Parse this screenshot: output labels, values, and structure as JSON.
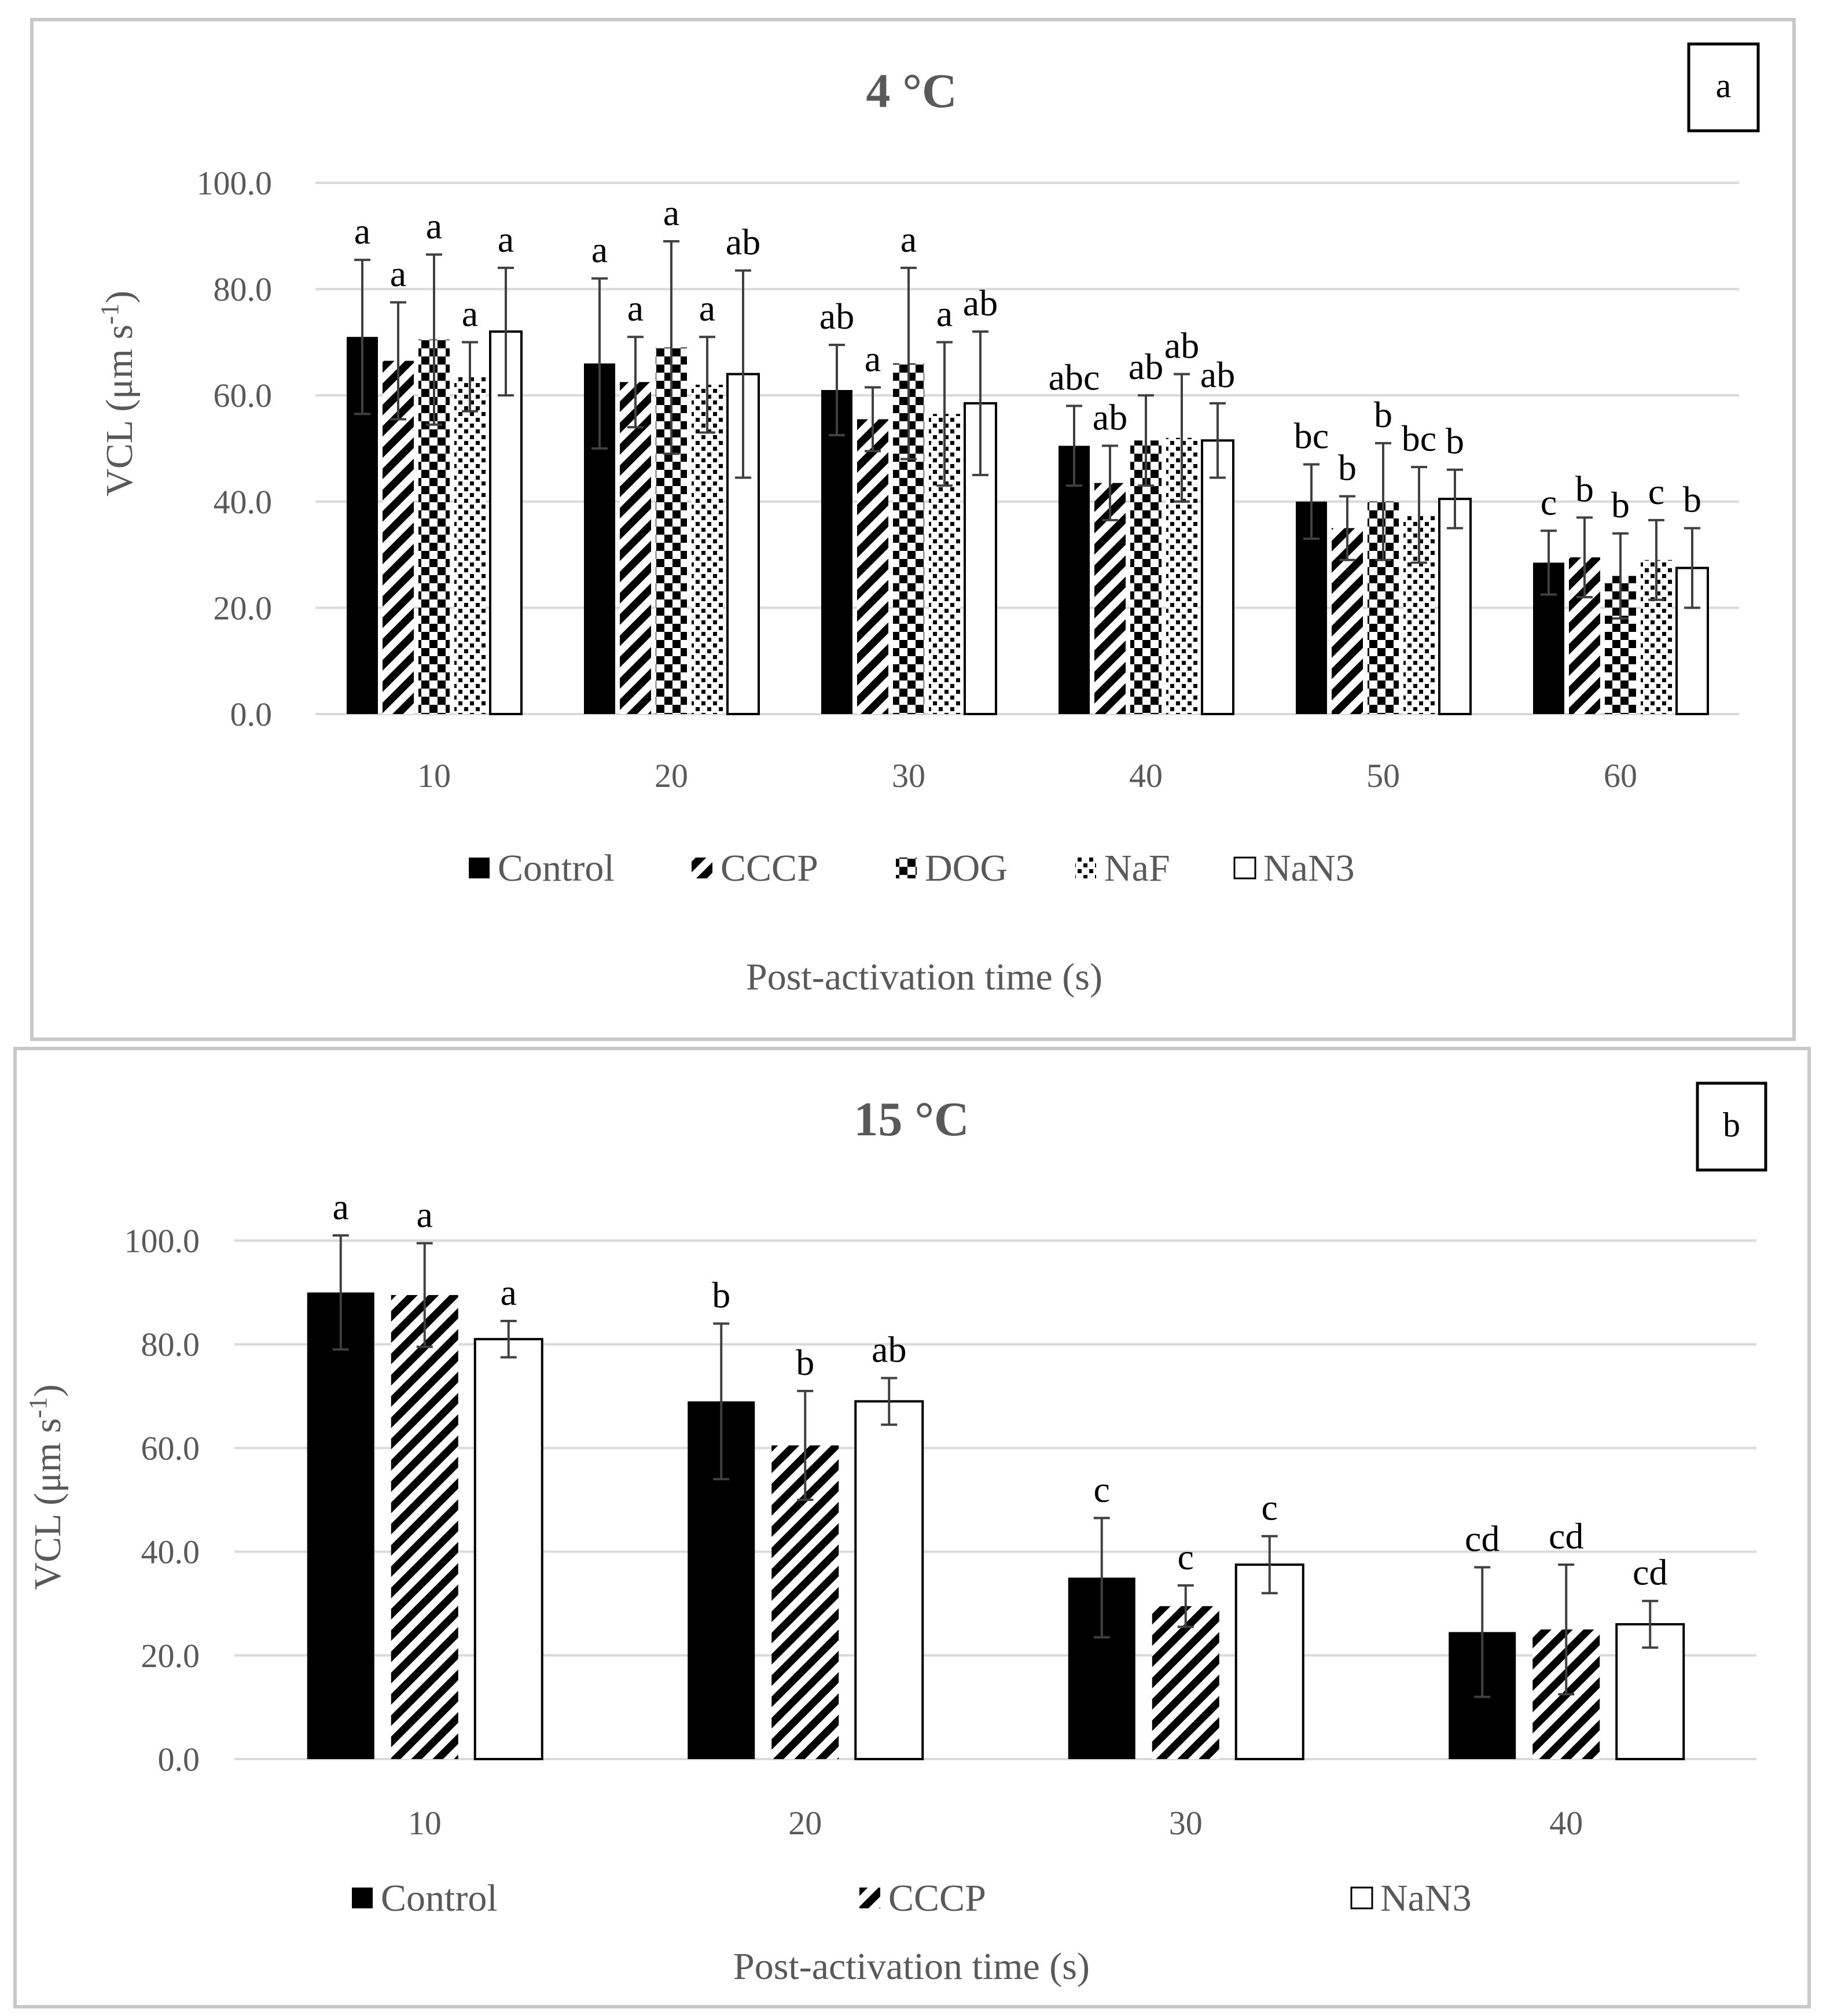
{
  "chart_data": [
    {
      "type": "bar",
      "panel_label": "a",
      "title": "4 °C",
      "xlabel": "Post-activation time (s)",
      "ylabel_main": "VCL (μm s",
      "ylabel_sup": "-1",
      "ylabel_close": ")",
      "ylim": [
        0,
        100
      ],
      "yticks": [
        "0.0",
        "20.0",
        "40.0",
        "60.0",
        "80.0",
        "100.0"
      ],
      "grid": true,
      "legend_position": "bottom",
      "categories": [
        "10",
        "20",
        "30",
        "40",
        "50",
        "60"
      ],
      "series": [
        {
          "name": "Control",
          "pattern": "solid",
          "values": [
            71,
            66,
            61,
            50.5,
            40,
            28.5
          ],
          "errors": [
            14.5,
            16,
            8.5,
            7.5,
            7,
            6
          ],
          "letters": [
            "a",
            "a",
            "ab",
            "abc",
            "bc",
            "c"
          ]
        },
        {
          "name": "CCCP",
          "pattern": "diagonal",
          "values": [
            66.5,
            62.5,
            55.5,
            43.5,
            35,
            29.5
          ],
          "errors": [
            11,
            8.5,
            6,
            7,
            6,
            7.5
          ],
          "letters": [
            "a",
            "a",
            "a",
            "ab",
            "b",
            "b"
          ]
        },
        {
          "name": "DOG",
          "pattern": "checker",
          "values": [
            70.5,
            69,
            66,
            51.5,
            40,
            26
          ],
          "errors": [
            16,
            20,
            18,
            8.5,
            11,
            8
          ],
          "letters": [
            "a",
            "a",
            "a",
            "ab",
            "b",
            "b"
          ]
        },
        {
          "name": "NaF",
          "pattern": "dots",
          "values": [
            63.5,
            62,
            56.5,
            52,
            37.5,
            29
          ],
          "errors": [
            6.5,
            9,
            13.5,
            12,
            9,
            7.5
          ],
          "letters": [
            "a",
            "a",
            "a",
            "ab",
            "bc",
            "c"
          ]
        },
        {
          "name": "NaN3",
          "pattern": "white",
          "values": [
            72,
            64,
            58.5,
            51.5,
            40.5,
            27.5
          ],
          "errors": [
            12,
            19.5,
            13.5,
            7,
            5.5,
            7.5
          ],
          "letters": [
            "a",
            "ab",
            "ab",
            "ab",
            "b",
            "b"
          ]
        }
      ]
    },
    {
      "type": "bar",
      "panel_label": "b",
      "title": "15 °C",
      "xlabel": "Post-activation time (s)",
      "ylabel_main": "VCL (μm s",
      "ylabel_sup": "-1",
      "ylabel_close": ")",
      "ylim": [
        0,
        100
      ],
      "yticks": [
        "0.0",
        "20.0",
        "40.0",
        "60.0",
        "80.0",
        "100.0"
      ],
      "grid": true,
      "legend_position": "bottom",
      "categories": [
        "10",
        "20",
        "30",
        "40"
      ],
      "series": [
        {
          "name": "Control",
          "pattern": "solid",
          "values": [
            90,
            69,
            35,
            24.5
          ],
          "errors": [
            11,
            15,
            11.5,
            12.5
          ],
          "letters": [
            "a",
            "b",
            "c",
            "cd"
          ]
        },
        {
          "name": "CCCP",
          "pattern": "diagonal",
          "values": [
            89.5,
            60.5,
            29.5,
            25
          ],
          "errors": [
            10,
            10.5,
            4,
            12.5
          ],
          "letters": [
            "a",
            "b",
            "c",
            "cd"
          ]
        },
        {
          "name": "NaN3",
          "pattern": "white",
          "values": [
            81,
            69,
            37.5,
            26
          ],
          "errors": [
            3.5,
            4.5,
            5.5,
            4.5
          ],
          "letters": [
            "a",
            "ab",
            "c",
            "cd"
          ]
        }
      ]
    }
  ]
}
